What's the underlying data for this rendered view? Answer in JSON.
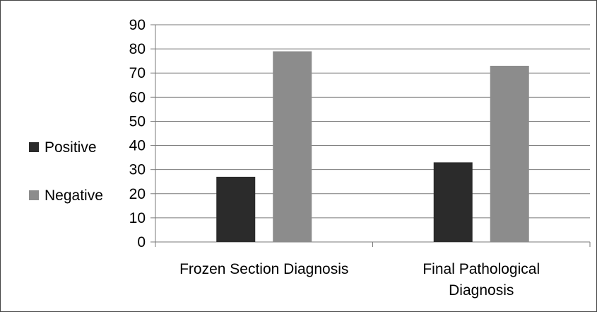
{
  "chart_data": {
    "type": "bar",
    "categories": [
      [
        "Frozen Section Diagnosis"
      ],
      [
        "Final Pathological",
        "Diagnosis"
      ]
    ],
    "series": [
      {
        "name": "Positive",
        "values": [
          27,
          33
        ],
        "color": "#2b2b2b"
      },
      {
        "name": "Negative",
        "values": [
          79,
          73
        ],
        "color": "#8c8c8c"
      }
    ],
    "title": "",
    "xlabel": "",
    "ylabel": "",
    "ylim": [
      0,
      90
    ],
    "yticks": [
      0,
      10,
      20,
      30,
      40,
      50,
      60,
      70,
      80,
      90
    ],
    "grid": true,
    "legend_position": "left"
  }
}
